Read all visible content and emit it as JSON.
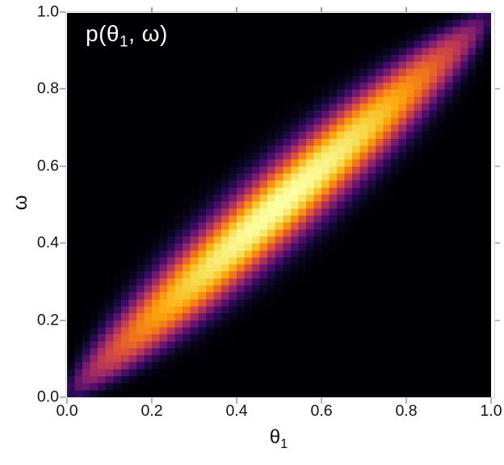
{
  "figure": {
    "background": "#ffffff",
    "title": {
      "prefix": "p(θ",
      "sub": "1",
      "suffix": ", ω)",
      "color": "#ffffff"
    },
    "axes": {
      "x": {
        "label_base": "θ",
        "label_sub": "1",
        "range": [
          0,
          1
        ],
        "tick_values": [
          0.0,
          0.2,
          0.4,
          0.6,
          0.8,
          1.0
        ],
        "tick_labels": [
          "0.0",
          "0.2",
          "0.4",
          "0.6",
          "0.8",
          "1.0"
        ],
        "mirror_tick_values": [
          0.2,
          0.4,
          0.6,
          0.8
        ]
      },
      "y": {
        "label": "ω",
        "range": [
          0,
          1
        ],
        "tick_values": [
          0.0,
          0.2,
          0.4,
          0.6,
          0.8,
          1.0
        ],
        "tick_labels": [
          "0.0",
          "0.2",
          "0.4",
          "0.6",
          "0.8",
          "1.0"
        ],
        "mirror_tick_values": [
          0.2,
          0.4,
          0.6,
          0.8
        ]
      }
    },
    "style_colors": {
      "spine": "#d4d4d4",
      "tick": "#b3b3b3",
      "mirror_tick": "#9a9a9a",
      "tick_label": "#141414",
      "title_text": "#ffffff",
      "plot_background": "#000004"
    }
  },
  "chart_data": {
    "type": "heatmap",
    "title": "p(θ1, ω)",
    "xlabel": "θ1",
    "ylabel": "ω",
    "x_range": [
      0,
      1
    ],
    "y_range": [
      0,
      1
    ],
    "grid": false,
    "legend": "none",
    "grid_resolution": 55,
    "colormap": "inferno",
    "colormap_stops": [
      "#000004",
      "#160b39",
      "#420a68",
      "#6a176e",
      "#932667",
      "#bc3754",
      "#dd513a",
      "#f37819",
      "#fca50a",
      "#f6d746",
      "#fcffa4"
    ],
    "density_model": "Joint density concentrated along the diagonal ω=θ1, pinched at (0,0) and (1,1), maximal at (0.5,0.5): f(θ,ω)=amp(c)·exp(-0.5·|Δ/σ(c)|^k) with c=(θ+ω)/2, Δ=θ-ω, σ(c)=σ0·sqrt(c(1-c)), amp(c)=(4c(1-c))^a; color=inferno(f/fmax)",
    "density_params": {
      "sigma0": 0.18,
      "shape_exp": 2.4,
      "amp_exp": 0.58
    },
    "ridge": {
      "from": [
        0,
        0
      ],
      "to": [
        1,
        1
      ],
      "peak_at": [
        0.5,
        0.5
      ],
      "diagonal_c": [
        0.0,
        0.1,
        0.2,
        0.3,
        0.4,
        0.5,
        0.6,
        0.7,
        0.8,
        0.9,
        1.0
      ],
      "ridge_intensity": [
        0.0,
        0.55,
        0.77,
        0.9,
        0.98,
        1.0,
        0.98,
        0.9,
        0.77,
        0.55,
        0.0
      ],
      "band_sigma": [
        0.0,
        0.054,
        0.072,
        0.082,
        0.088,
        0.09,
        0.088,
        0.082,
        0.072,
        0.054,
        0.0
      ]
    }
  }
}
